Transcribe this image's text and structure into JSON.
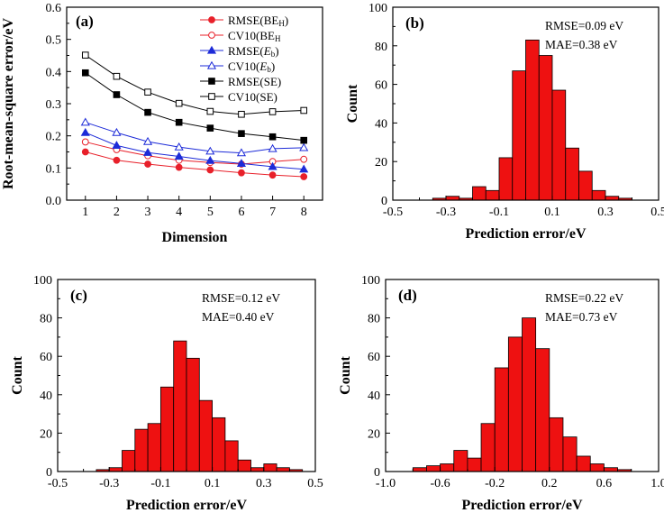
{
  "chart_data": [
    {
      "panel": "(a)",
      "type": "line",
      "xlabel": "Dimension",
      "ylabel": "Root-mean-square error/eV",
      "x": [
        1,
        2,
        3,
        4,
        5,
        6,
        7,
        8
      ],
      "xticks": [
        "1",
        "2",
        "3",
        "4",
        "5",
        "6",
        "7",
        "8"
      ],
      "ylim": [
        0.0,
        0.6
      ],
      "yticks": [
        "0.0",
        "0.1",
        "0.2",
        "0.3",
        "0.4",
        "0.5",
        "0.6"
      ],
      "legend_position": "top-right",
      "series": [
        {
          "name": "RMSE(BEH)",
          "label_main": "RMSE(BE",
          "label_sub": "H",
          "label_tail": ")",
          "label_italic": false,
          "color": "#e8202a",
          "marker": "circle",
          "filled": true,
          "values": [
            0.15,
            0.124,
            0.112,
            0.102,
            0.094,
            0.085,
            0.078,
            0.073
          ]
        },
        {
          "name": "CV10(BEH)",
          "label_main": "CV10(BE",
          "label_sub": "H",
          "label_tail": "",
          "label_italic": false,
          "color": "#e8202a",
          "marker": "circle",
          "filled": false,
          "values": [
            0.181,
            0.157,
            0.138,
            0.124,
            0.117,
            0.112,
            0.12,
            0.127
          ]
        },
        {
          "name": "RMSE(Eb)",
          "label_main": "RMSE(",
          "label_sub": "b",
          "label_tail": ")",
          "label_italic": true,
          "italic_letter": "E",
          "color": "#1d2bd8",
          "marker": "triangle",
          "filled": true,
          "values": [
            0.21,
            0.17,
            0.148,
            0.136,
            0.123,
            0.114,
            0.104,
            0.096
          ]
        },
        {
          "name": "CV10(Eb)",
          "label_main": "CV10(",
          "label_sub": "b",
          "label_tail": ")",
          "label_italic": true,
          "italic_letter": "E",
          "color": "#1d2bd8",
          "marker": "triangle",
          "filled": false,
          "values": [
            0.242,
            0.21,
            0.182,
            0.165,
            0.152,
            0.147,
            0.16,
            0.163
          ]
        },
        {
          "name": "RMSE(SE)",
          "label_main": "RMSE(SE)",
          "label_sub": "",
          "label_tail": "",
          "label_italic": false,
          "color": "#000000",
          "marker": "square",
          "filled": true,
          "values": [
            0.396,
            0.328,
            0.273,
            0.242,
            0.224,
            0.207,
            0.197,
            0.186
          ]
        },
        {
          "name": "CV10(SE)",
          "label_main": "CV10(SE)",
          "label_sub": "",
          "label_tail": "",
          "label_italic": false,
          "color": "#000000",
          "marker": "square",
          "filled": false,
          "values": [
            0.451,
            0.385,
            0.336,
            0.301,
            0.276,
            0.267,
            0.275,
            0.279
          ]
        }
      ]
    },
    {
      "panel": "(b)",
      "type": "bar",
      "xlabel": "Prediction error/eV",
      "ylabel": "Count",
      "xlim": [
        -0.5,
        0.5
      ],
      "xticks": [
        "-0.5",
        "-0.3",
        "-0.1",
        "0.1",
        "0.3",
        "0.5"
      ],
      "ylim": [
        0,
        100
      ],
      "yticks": [
        "0",
        "20",
        "40",
        "60",
        "80",
        "100"
      ],
      "bin_width": 0.05,
      "bin_starts": [
        -0.4,
        -0.35,
        -0.3,
        -0.25,
        -0.2,
        -0.15,
        -0.1,
        -0.05,
        0.0,
        0.05,
        0.1,
        0.15,
        0.2,
        0.25,
        0.3,
        0.35
      ],
      "values": [
        0,
        1,
        2,
        1,
        7,
        5,
        22,
        67,
        83,
        75,
        57,
        27,
        15,
        5,
        2,
        1
      ],
      "bar_color": "#ee1111",
      "rmse_text": "RMSE=0.09 eV",
      "mae_text": "MAE=0.38 eV"
    },
    {
      "panel": "(c)",
      "type": "bar",
      "xlabel": "Prediction error/eV",
      "ylabel": "Count",
      "xlim": [
        -0.5,
        0.5
      ],
      "xticks": [
        "-0.5",
        "-0.3",
        "-0.1",
        "0.1",
        "0.3",
        "0.5"
      ],
      "ylim": [
        0,
        100
      ],
      "yticks": [
        "0",
        "20",
        "40",
        "60",
        "80",
        "100"
      ],
      "bin_width": 0.05,
      "bin_starts": [
        -0.35,
        -0.3,
        -0.25,
        -0.2,
        -0.15,
        -0.1,
        -0.05,
        0.0,
        0.05,
        0.1,
        0.15,
        0.2,
        0.25,
        0.3,
        0.35,
        0.4
      ],
      "values": [
        1,
        2,
        11,
        22,
        25,
        44,
        68,
        59,
        37,
        28,
        16,
        6,
        2,
        4,
        2,
        1
      ],
      "bar_color": "#ee1111",
      "rmse_text": "RMSE=0.12 eV",
      "mae_text": "MAE=0.40 eV"
    },
    {
      "panel": "(d)",
      "type": "bar",
      "xlabel": "Prediction error/eV",
      "ylabel": "Count",
      "xlim": [
        -1.0,
        1.0
      ],
      "xticks": [
        "-1.0",
        "-0.6",
        "-0.2",
        "0.2",
        "0.6",
        "1.0"
      ],
      "ylim": [
        0,
        100
      ],
      "yticks": [
        "0",
        "20",
        "40",
        "60",
        "80",
        "100"
      ],
      "bin_width": 0.1,
      "bin_starts": [
        -0.8,
        -0.7,
        -0.6,
        -0.5,
        -0.4,
        -0.3,
        -0.2,
        -0.1,
        0.0,
        0.1,
        0.2,
        0.3,
        0.4,
        0.5,
        0.6,
        0.7
      ],
      "values": [
        2,
        3,
        4,
        11,
        7,
        25,
        54,
        70,
        80,
        64,
        28,
        18,
        8,
        4,
        2,
        1
      ],
      "bar_color": "#ee1111",
      "rmse_text": "RMSE=0.22 eV",
      "mae_text": "MAE=0.73 eV"
    }
  ]
}
